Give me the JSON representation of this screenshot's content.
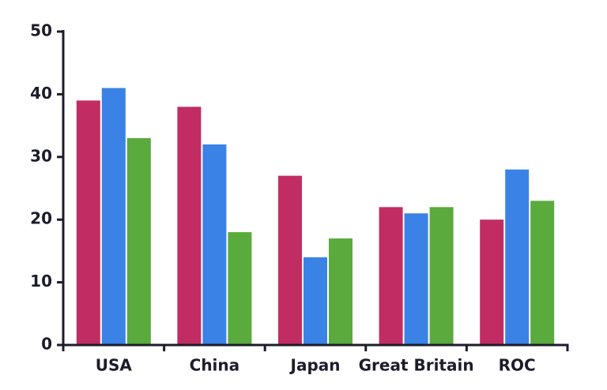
{
  "chart_data": {
    "type": "bar",
    "categories": [
      "USA",
      "China",
      "Japan",
      "Great Britain",
      "ROC"
    ],
    "series": [
      {
        "color": "#c12d62",
        "values": [
          39,
          38,
          27,
          22,
          20
        ]
      },
      {
        "color": "#3b82e6",
        "values": [
          41,
          32,
          14,
          21,
          28
        ]
      },
      {
        "color": "#5aaa3d",
        "values": [
          33,
          18,
          17,
          22,
          23
        ]
      }
    ],
    "ylim": [
      0,
      50
    ],
    "yticks": [
      0,
      10,
      20,
      30,
      40,
      50
    ],
    "grid": false
  }
}
